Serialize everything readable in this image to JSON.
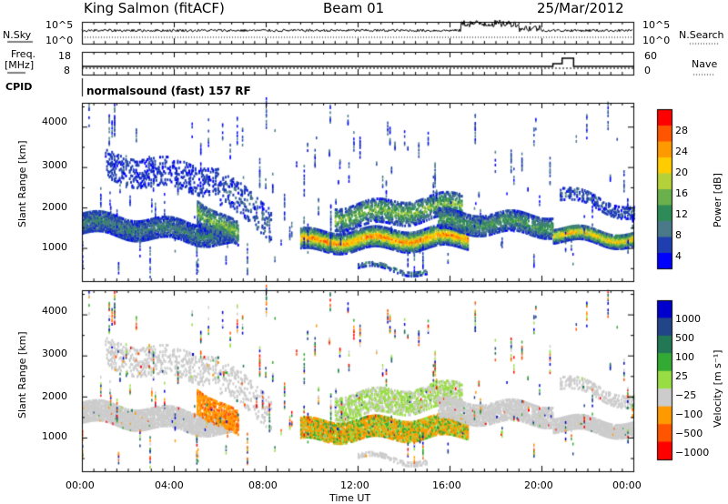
{
  "header": {
    "station": "King Salmon (fitACF)",
    "beam": "Beam 01",
    "date": "25/Mar/2012"
  },
  "noise_panel": {
    "left_label": "N.Sky",
    "right_label": "N.Search",
    "top_tick": "10^5",
    "bottom_tick": "10^0"
  },
  "freq_panel": {
    "left_label_1": "Freq.",
    "left_label_2": "[MHz]",
    "right_label": "Nave",
    "left_ticks": [
      "18",
      "8"
    ],
    "right_ticks": [
      "60",
      "0"
    ]
  },
  "cpid_panel": {
    "label": "CPID",
    "text": "normalsound (fast) 157 RF"
  },
  "colors": {
    "power_scale": [
      "#0000ff",
      "#1f3fb0",
      "#4a7a8a",
      "#2e8b57",
      "#6ab04c",
      "#b5d13a",
      "#ffcc00",
      "#ff9900",
      "#ff5500",
      "#ff0000"
    ],
    "velocity_scale": [
      "#ff0000",
      "#ff5500",
      "#ff9900",
      "#cccccc",
      "#99dd44",
      "#33aa33",
      "#227755",
      "#224488",
      "#0000cc"
    ]
  },
  "chart_data": [
    {
      "type": "heatmap",
      "title": "",
      "xlabel": "",
      "ylabel": "Slant Range [km]",
      "x_ticks": [
        "00:00",
        "04:00",
        "08:00",
        "12:00",
        "16:00",
        "20:00",
        "00:00"
      ],
      "y_ticks": [
        "1000",
        "2000",
        "3000",
        "4000"
      ],
      "ylim": [
        180,
        4590
      ],
      "colorbar": {
        "label": "Power [dB]",
        "ticks": [
          "4",
          "8",
          "12",
          "16",
          "20",
          "24",
          "28"
        ],
        "range": [
          0,
          30
        ]
      }
    },
    {
      "type": "heatmap",
      "title": "",
      "xlabel": "Time UT",
      "ylabel": "Slant Range [km]",
      "x_ticks": [
        "00:00",
        "04:00",
        "08:00",
        "12:00",
        "16:00",
        "20:00",
        "00:00"
      ],
      "y_ticks": [
        "1000",
        "2000",
        "3000",
        "4000"
      ],
      "ylim": [
        180,
        4590
      ],
      "colorbar": {
        "label": "Velocity [m s⁻¹]",
        "ticks": [
          "1000",
          "500",
          "100",
          "25",
          "−25",
          "−100",
          "−500",
          "−1000"
        ]
      }
    }
  ]
}
